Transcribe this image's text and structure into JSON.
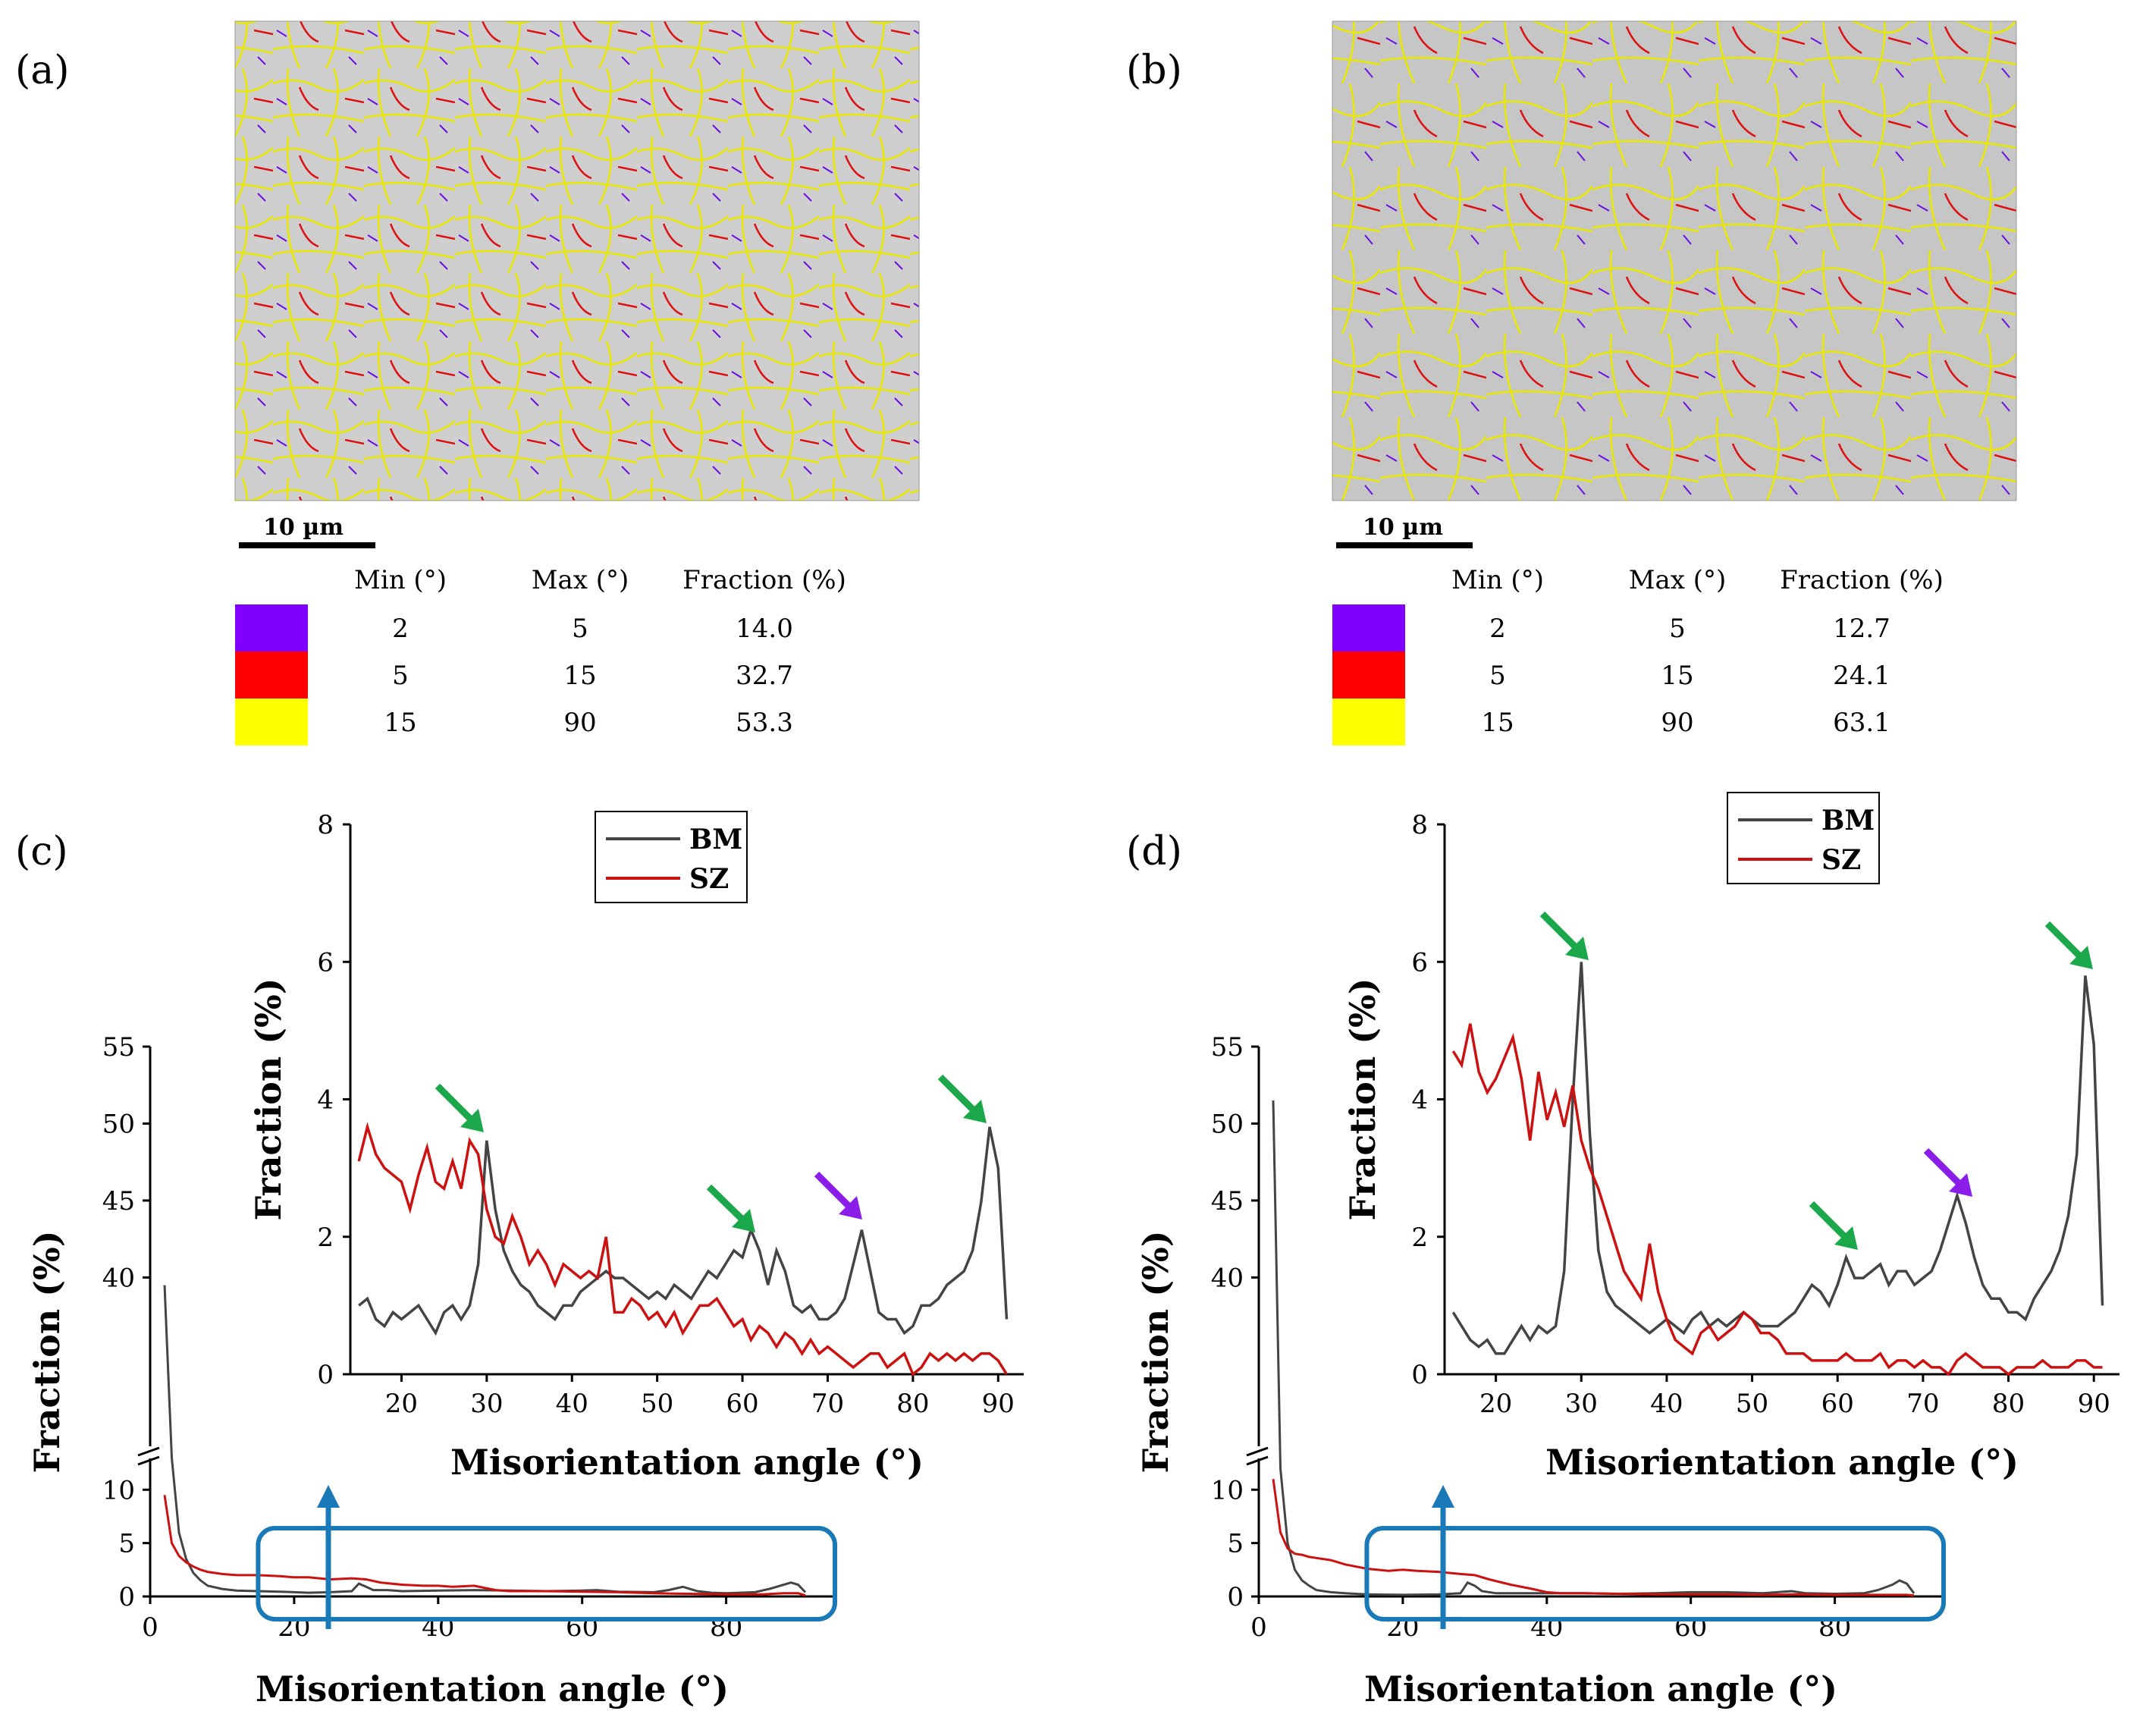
{
  "panels": {
    "a": {
      "label": "(a)",
      "scale_bar": "10 µm",
      "table": {
        "headers": [
          "Min (°)",
          "Max (°)",
          "Fraction (%)"
        ],
        "rows": [
          {
            "color": "#8000ff",
            "min": "2",
            "max": "5",
            "fraction": "14.0"
          },
          {
            "color": "#ff0000",
            "min": "5",
            "max": "15",
            "fraction": "32.7"
          },
          {
            "color": "#ffff00",
            "min": "15",
            "max": "90",
            "fraction": "53.3"
          }
        ]
      }
    },
    "b": {
      "label": "(b)",
      "scale_bar": "10 µm",
      "table": {
        "headers": [
          "Min (°)",
          "Max (°)",
          "Fraction (%)"
        ],
        "rows": [
          {
            "color": "#8000ff",
            "min": "2",
            "max": "5",
            "fraction": "12.7"
          },
          {
            "color": "#ff0000",
            "min": "5",
            "max": "15",
            "fraction": "24.1"
          },
          {
            "color": "#ffff00",
            "min": "15",
            "max": "90",
            "fraction": "63.1"
          }
        ]
      }
    },
    "c": {
      "label": "(c)"
    },
    "d": {
      "label": "(d)"
    }
  },
  "colors": {
    "bm": "#444444",
    "sz": "#cc1111",
    "box": "#1a7ab8",
    "green_arrow": "#1aa84a",
    "purple_arrow": "#8a1ee8"
  },
  "chart_data": [
    {
      "id": "c-main",
      "type": "line",
      "xlabel": "Misorientation angle (°)",
      "ylabel": "Fraction (%)",
      "x_range": [
        0,
        95
      ],
      "y_lower_range": [
        0,
        13.5
      ],
      "y_upper_range": [
        38,
        55
      ],
      "axis_break": true,
      "x_ticks": [
        0,
        20,
        40,
        60,
        80
      ],
      "y_ticks": [
        "0",
        "5",
        "10",
        "40",
        "45",
        "50",
        "55"
      ],
      "series": [
        {
          "name": "BM",
          "x": [
            2,
            3,
            4,
            5,
            6,
            7,
            8,
            10,
            12,
            15,
            18,
            20,
            22,
            25,
            28,
            29,
            30,
            31,
            33,
            35,
            40,
            45,
            50,
            55,
            60,
            62,
            65,
            70,
            72,
            74,
            76,
            78,
            80,
            84,
            86,
            88,
            89,
            90,
            91
          ],
          "y": [
            39.5,
            13,
            6,
            3.5,
            2.2,
            1.5,
            1,
            0.7,
            0.55,
            0.5,
            0.45,
            0.4,
            0.35,
            0.4,
            0.5,
            1.2,
            0.9,
            0.6,
            0.6,
            0.5,
            0.55,
            0.6,
            0.55,
            0.5,
            0.55,
            0.6,
            0.45,
            0.4,
            0.6,
            0.9,
            0.5,
            0.35,
            0.3,
            0.4,
            0.7,
            1.1,
            1.3,
            1.1,
            0.4
          ]
        },
        {
          "name": "SZ",
          "x": [
            2,
            3,
            4,
            5,
            6,
            7,
            8,
            10,
            12,
            15,
            18,
            20,
            22,
            25,
            28,
            30,
            32,
            35,
            38,
            40,
            42,
            45,
            48,
            50,
            55,
            60,
            65,
            70,
            75,
            80,
            85,
            88,
            90,
            91
          ],
          "y": [
            9.5,
            5,
            3.8,
            3.2,
            2.8,
            2.5,
            2.3,
            2.1,
            2,
            2,
            1.9,
            1.8,
            1.8,
            1.6,
            1.7,
            1.6,
            1.3,
            1.1,
            1.0,
            1.0,
            0.9,
            1.0,
            0.6,
            0.5,
            0.5,
            0.45,
            0.4,
            0.3,
            0.25,
            0.2,
            0.2,
            0.3,
            0.3,
            0.1
          ]
        }
      ]
    },
    {
      "id": "c-inset",
      "type": "line",
      "xlabel": "Misorientation angle (°)",
      "ylabel": "Fraction (%)",
      "x_range": [
        14,
        93
      ],
      "y_range": [
        0,
        8
      ],
      "x_ticks": [
        20,
        30,
        40,
        50,
        60,
        70,
        80,
        90
      ],
      "y_ticks": [
        0,
        2,
        4,
        6,
        8
      ],
      "legend": [
        "BM",
        "SZ"
      ],
      "series": [
        {
          "name": "BM",
          "x": [
            15,
            16,
            17,
            18,
            19,
            20,
            21,
            22,
            23,
            24,
            25,
            26,
            27,
            28,
            29,
            30,
            31,
            32,
            33,
            34,
            35,
            36,
            37,
            38,
            39,
            40,
            41,
            42,
            43,
            44,
            45,
            46,
            47,
            48,
            49,
            50,
            51,
            52,
            53,
            54,
            55,
            56,
            57,
            58,
            59,
            60,
            61,
            62,
            63,
            64,
            65,
            66,
            67,
            68,
            69,
            70,
            71,
            72,
            73,
            74,
            75,
            76,
            77,
            78,
            79,
            80,
            81,
            82,
            83,
            84,
            85,
            86,
            87,
            88,
            89,
            90,
            91
          ],
          "y": [
            1.0,
            1.1,
            0.8,
            0.7,
            0.9,
            0.8,
            0.9,
            1.0,
            0.8,
            0.6,
            0.9,
            1.0,
            0.8,
            1.0,
            1.6,
            3.4,
            2.4,
            1.8,
            1.5,
            1.3,
            1.2,
            1.0,
            0.9,
            0.8,
            1.0,
            1.0,
            1.2,
            1.3,
            1.4,
            1.5,
            1.4,
            1.4,
            1.3,
            1.2,
            1.1,
            1.2,
            1.1,
            1.3,
            1.2,
            1.1,
            1.3,
            1.5,
            1.4,
            1.6,
            1.8,
            1.7,
            2.1,
            1.8,
            1.3,
            1.8,
            1.5,
            1.0,
            0.9,
            1.0,
            0.8,
            0.8,
            0.9,
            1.1,
            1.6,
            2.1,
            1.5,
            0.9,
            0.8,
            0.8,
            0.6,
            0.7,
            1.0,
            1.0,
            1.1,
            1.3,
            1.4,
            1.5,
            1.8,
            2.5,
            3.6,
            3.0,
            0.8
          ]
        },
        {
          "name": "SZ",
          "x": [
            15,
            16,
            17,
            18,
            19,
            20,
            21,
            22,
            23,
            24,
            25,
            26,
            27,
            28,
            29,
            30,
            31,
            32,
            33,
            34,
            35,
            36,
            37,
            38,
            39,
            40,
            41,
            42,
            43,
            44,
            45,
            46,
            47,
            48,
            49,
            50,
            51,
            52,
            53,
            54,
            55,
            56,
            57,
            58,
            59,
            60,
            61,
            62,
            63,
            64,
            65,
            66,
            67,
            68,
            69,
            70,
            71,
            72,
            73,
            74,
            75,
            76,
            77,
            78,
            79,
            80,
            81,
            82,
            83,
            84,
            85,
            86,
            87,
            88,
            89,
            90,
            91
          ],
          "y": [
            3.1,
            3.6,
            3.2,
            3.0,
            2.9,
            2.8,
            2.4,
            2.9,
            3.3,
            2.8,
            2.7,
            3.1,
            2.7,
            3.4,
            3.2,
            2.4,
            2.0,
            1.9,
            2.3,
            2.0,
            1.6,
            1.8,
            1.6,
            1.3,
            1.6,
            1.5,
            1.4,
            1.5,
            1.4,
            2.0,
            0.9,
            0.9,
            1.1,
            1.0,
            0.8,
            0.9,
            0.7,
            0.9,
            0.6,
            0.8,
            1.0,
            1.0,
            1.1,
            0.9,
            0.7,
            0.8,
            0.5,
            0.7,
            0.6,
            0.4,
            0.6,
            0.5,
            0.3,
            0.5,
            0.3,
            0.4,
            0.3,
            0.2,
            0.1,
            0.2,
            0.3,
            0.3,
            0.1,
            0.2,
            0.3,
            0.0,
            0.1,
            0.3,
            0.2,
            0.3,
            0.2,
            0.3,
            0.2,
            0.3,
            0.3,
            0.2,
            0.0
          ]
        }
      ]
    },
    {
      "id": "d-main",
      "type": "line",
      "xlabel": "Misorientation angle (°)",
      "ylabel": "Fraction (%)",
      "x_range": [
        0,
        95
      ],
      "y_lower_range": [
        0,
        13.5
      ],
      "y_upper_range": [
        38,
        55
      ],
      "axis_break": true,
      "x_ticks": [
        0,
        20,
        40,
        60,
        80
      ],
      "y_ticks": [
        "0",
        "5",
        "10",
        "40",
        "45",
        "50",
        "55"
      ],
      "series": [
        {
          "name": "BM",
          "x": [
            2,
            3,
            4,
            5,
            6,
            7,
            8,
            10,
            12,
            15,
            20,
            25,
            28,
            29,
            30,
            31,
            33,
            35,
            40,
            45,
            50,
            55,
            60,
            65,
            70,
            74,
            76,
            80,
            84,
            86,
            88,
            89,
            90,
            91
          ],
          "y": [
            51.5,
            12,
            5,
            2.5,
            1.5,
            1,
            0.6,
            0.4,
            0.3,
            0.2,
            0.15,
            0.2,
            0.3,
            1.3,
            1.0,
            0.5,
            0.3,
            0.3,
            0.3,
            0.3,
            0.25,
            0.3,
            0.4,
            0.4,
            0.3,
            0.5,
            0.3,
            0.25,
            0.3,
            0.6,
            1.1,
            1.5,
            1.2,
            0.3
          ]
        },
        {
          "name": "SZ",
          "x": [
            2,
            3,
            4,
            5,
            6,
            7,
            8,
            10,
            12,
            15,
            18,
            20,
            22,
            25,
            28,
            30,
            32,
            35,
            38,
            40,
            42,
            45,
            50,
            55,
            60,
            65,
            70,
            75,
            80,
            85,
            88,
            90,
            91
          ],
          "y": [
            11,
            6,
            4.5,
            4,
            3.9,
            3.7,
            3.6,
            3.4,
            3,
            2.6,
            2.4,
            2.5,
            2.4,
            2.3,
            2.1,
            2.0,
            1.6,
            1.1,
            0.7,
            0.4,
            0.3,
            0.3,
            0.25,
            0.2,
            0.2,
            0.2,
            0.15,
            0.2,
            0.15,
            0.15,
            0.15,
            0.15,
            0.1
          ]
        }
      ]
    },
    {
      "id": "d-inset",
      "type": "line",
      "xlabel": "Misorientation angle (°)",
      "ylabel": "Fraction (%)",
      "x_range": [
        14,
        93
      ],
      "y_range": [
        0,
        8
      ],
      "x_ticks": [
        20,
        30,
        40,
        50,
        60,
        70,
        80,
        90
      ],
      "y_ticks": [
        0,
        2,
        4,
        6,
        8
      ],
      "legend": [
        "BM",
        "SZ"
      ],
      "series": [
        {
          "name": "BM",
          "x": [
            15,
            16,
            17,
            18,
            19,
            20,
            21,
            22,
            23,
            24,
            25,
            26,
            27,
            28,
            29,
            30,
            31,
            32,
            33,
            34,
            35,
            36,
            37,
            38,
            39,
            40,
            41,
            42,
            43,
            44,
            45,
            46,
            47,
            48,
            49,
            50,
            51,
            52,
            53,
            54,
            55,
            56,
            57,
            58,
            59,
            60,
            61,
            62,
            63,
            64,
            65,
            66,
            67,
            68,
            69,
            70,
            71,
            72,
            73,
            74,
            75,
            76,
            77,
            78,
            79,
            80,
            81,
            82,
            83,
            84,
            85,
            86,
            87,
            88,
            89,
            90,
            91
          ],
          "y": [
            0.9,
            0.7,
            0.5,
            0.4,
            0.5,
            0.3,
            0.3,
            0.5,
            0.7,
            0.5,
            0.7,
            0.6,
            0.7,
            1.5,
            4.0,
            6.0,
            3.5,
            1.8,
            1.2,
            1.0,
            0.9,
            0.8,
            0.7,
            0.6,
            0.7,
            0.8,
            0.7,
            0.6,
            0.8,
            0.9,
            0.7,
            0.8,
            0.7,
            0.8,
            0.9,
            0.8,
            0.7,
            0.7,
            0.7,
            0.8,
            0.9,
            1.1,
            1.3,
            1.2,
            1.0,
            1.3,
            1.7,
            1.4,
            1.4,
            1.5,
            1.6,
            1.3,
            1.5,
            1.5,
            1.3,
            1.4,
            1.5,
            1.8,
            2.2,
            2.6,
            2.2,
            1.7,
            1.3,
            1.1,
            1.1,
            0.9,
            0.9,
            0.8,
            1.1,
            1.3,
            1.5,
            1.8,
            2.3,
            3.2,
            5.8,
            4.8,
            1.0
          ]
        },
        {
          "name": "SZ",
          "x": [
            15,
            16,
            17,
            18,
            19,
            20,
            21,
            22,
            23,
            24,
            25,
            26,
            27,
            28,
            29,
            30,
            31,
            32,
            33,
            34,
            35,
            36,
            37,
            38,
            39,
            40,
            41,
            42,
            43,
            44,
            45,
            46,
            47,
            48,
            49,
            50,
            51,
            52,
            53,
            54,
            55,
            56,
            57,
            58,
            59,
            60,
            61,
            62,
            63,
            64,
            65,
            66,
            67,
            68,
            69,
            70,
            71,
            72,
            73,
            74,
            75,
            76,
            77,
            78,
            79,
            80,
            81,
            82,
            83,
            84,
            85,
            86,
            87,
            88,
            89,
            90,
            91
          ],
          "y": [
            4.7,
            4.5,
            5.1,
            4.4,
            4.1,
            4.3,
            4.6,
            4.9,
            4.3,
            3.4,
            4.4,
            3.7,
            4.1,
            3.6,
            4.2,
            3.4,
            3.0,
            2.7,
            2.3,
            1.9,
            1.5,
            1.3,
            1.1,
            1.9,
            1.2,
            0.8,
            0.5,
            0.4,
            0.3,
            0.6,
            0.7,
            0.5,
            0.6,
            0.7,
            0.9,
            0.8,
            0.6,
            0.6,
            0.5,
            0.3,
            0.3,
            0.3,
            0.2,
            0.2,
            0.2,
            0.2,
            0.3,
            0.2,
            0.2,
            0.2,
            0.3,
            0.1,
            0.2,
            0.2,
            0.1,
            0.2,
            0.1,
            0.1,
            0.0,
            0.2,
            0.3,
            0.2,
            0.1,
            0.1,
            0.1,
            0.0,
            0.1,
            0.1,
            0.1,
            0.2,
            0.1,
            0.1,
            0.1,
            0.2,
            0.2,
            0.1,
            0.1
          ]
        }
      ]
    }
  ]
}
